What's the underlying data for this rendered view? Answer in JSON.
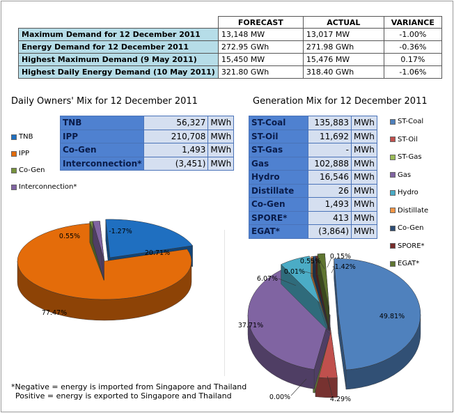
{
  "summary": {
    "headers": [
      "",
      "FORECAST",
      "ACTUAL",
      "VARIANCE"
    ],
    "rows": [
      {
        "label": "Maximum Demand for 12 December 2011",
        "forecast": "13,148 MW",
        "actual": "13,017 MW",
        "variance": "-1.00%"
      },
      {
        "label": "Energy Demand for 12 December 2011",
        "forecast": "272.95 GWh",
        "actual": "271.98 GWh",
        "variance": "-0.36%"
      },
      {
        "label": "Highest Maximum Demand (9 May 2011)",
        "forecast": "15,450 MW",
        "actual": "15,476 MW",
        "variance": "0.17%"
      },
      {
        "label": "Highest Daily Energy Demand (10 May 2011)",
        "forecast": "321.80 GWh",
        "actual": "318.40 GWh",
        "variance": "-1.06%"
      }
    ]
  },
  "chart_data": [
    {
      "type": "pie",
      "title": "Daily Owners' Mix for 12 December 2011",
      "unit": "MWh",
      "labels": [
        "TNB",
        "IPP",
        "Co-Gen",
        "Interconnection*"
      ],
      "display_values": [
        "56,327",
        "210,708",
        "1,493",
        "(3,451)"
      ],
      "values": [
        56327,
        210708,
        1493,
        -3451
      ],
      "percent_labels": [
        "20.71%",
        "77.47%",
        "0.55%",
        "-1.27%"
      ],
      "percent_values": [
        20.71,
        77.47,
        0.55,
        -1.27
      ],
      "colors": [
        "#1f6fc0",
        "#e46c0a",
        "#77933c",
        "#8064a2"
      ]
    },
    {
      "type": "pie",
      "title": "Generation Mix for 12 December 2011",
      "unit": "MWh",
      "labels": [
        "ST-Coal",
        "ST-Oil",
        "ST-Gas",
        "Gas",
        "Hydro",
        "Distillate",
        "Co-Gen",
        "SPORE*",
        "EGAT*"
      ],
      "display_values": [
        "135,883",
        "11,692",
        "-",
        "102,888",
        "16,546",
        "26",
        "1,493",
        "413",
        "(3,864)"
      ],
      "values": [
        135883,
        11692,
        0,
        102888,
        16546,
        26,
        1493,
        413,
        -3864
      ],
      "percent_labels": [
        "49.81%",
        "4.29%",
        "0.00%",
        "37.71%",
        "6.07%",
        "0.01%",
        "0.55%",
        "0.15%",
        "-1.42%"
      ],
      "percent_values": [
        49.81,
        4.29,
        0.0,
        37.71,
        6.07,
        0.01,
        0.55,
        0.15,
        -1.42
      ],
      "colors": [
        "#4f81bd",
        "#c0504d",
        "#9bbb59",
        "#8064a2",
        "#4bacc6",
        "#f79646",
        "#2c4d75",
        "#772c2a",
        "#5f7530"
      ]
    }
  ],
  "note": {
    "line1": "*Negative = energy is imported from Singapore and Thailand",
    "line2": "Positive = energy is exported to Singapore and Thailand"
  }
}
